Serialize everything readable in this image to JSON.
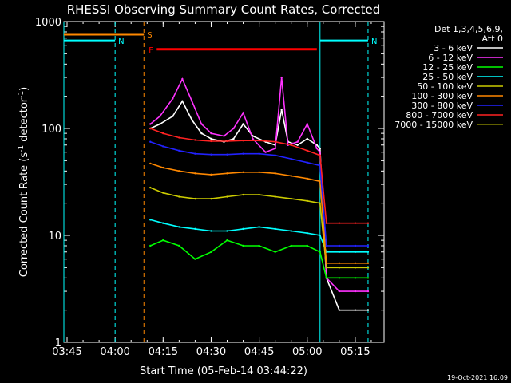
{
  "chart_data": {
    "type": "line",
    "title": "RHESSI Observing Summary Count Rates, Corrected",
    "xlabel": "Start Time (05-Feb-14 03:44:22)",
    "ylabel_main": "Corrected Count Rate (s",
    "ylabel_sup1": "-1",
    "ylabel_mid": " detector",
    "ylabel_sup2": "-1",
    "ylabel_end": ")",
    "yscale": "log",
    "xlim": [
      "03:44",
      "05:24"
    ],
    "ylim": [
      1,
      1000
    ],
    "x_ticks": [
      "03:45",
      "04:00",
      "04:15",
      "04:30",
      "04:45",
      "05:00",
      "05:15"
    ],
    "y_ticks": [
      "1",
      "10",
      "100",
      "1000"
    ],
    "legend_header": [
      "Det 1,3,4,5,6,9,",
      "Att 0"
    ],
    "series": [
      {
        "name": "3 - 6 keV",
        "color": "#ffffff",
        "x": [
          "04:11",
          "04:14",
          "04:18",
          "04:21",
          "04:24",
          "04:27",
          "04:30",
          "04:34",
          "04:37",
          "04:40",
          "04:43",
          "04:47",
          "04:50",
          "04:52",
          "04:54",
          "04:57",
          "05:00",
          "05:03",
          "05:04",
          "05:06",
          "05:10",
          "05:15",
          "05:19"
        ],
        "y": [
          100,
          110,
          130,
          180,
          120,
          90,
          80,
          75,
          80,
          110,
          85,
          75,
          70,
          150,
          75,
          70,
          80,
          70,
          65,
          4,
          2,
          2,
          2
        ]
      },
      {
        "name": "6 - 12 keV",
        "color": "#ff33ff",
        "x": [
          "04:11",
          "04:14",
          "04:18",
          "04:21",
          "04:24",
          "04:27",
          "04:30",
          "04:34",
          "04:37",
          "04:40",
          "04:43",
          "04:47",
          "04:50",
          "04:52",
          "04:54",
          "04:57",
          "05:00",
          "05:03",
          "05:04",
          "05:06",
          "05:10",
          "05:15",
          "05:19"
        ],
        "y": [
          110,
          130,
          190,
          290,
          180,
          110,
          90,
          85,
          100,
          140,
          80,
          60,
          65,
          300,
          70,
          75,
          110,
          65,
          60,
          4,
          3,
          3,
          3
        ]
      },
      {
        "name": "12 - 25 keV",
        "color": "#00ff00",
        "x": [
          "04:11",
          "04:15",
          "04:20",
          "04:25",
          "04:30",
          "04:35",
          "04:40",
          "04:45",
          "04:50",
          "04:55",
          "05:00",
          "05:04",
          "05:06",
          "05:10",
          "05:15",
          "05:19"
        ],
        "y": [
          8,
          9,
          8,
          6,
          7,
          9,
          8,
          8,
          7,
          8,
          8,
          7,
          4,
          4,
          4,
          4
        ]
      },
      {
        "name": "25 - 50 keV",
        "color": "#00ffff",
        "x": [
          "04:11",
          "04:15",
          "04:20",
          "04:25",
          "04:30",
          "04:35",
          "04:40",
          "04:45",
          "04:50",
          "04:55",
          "05:00",
          "05:04",
          "05:06",
          "05:10",
          "05:15",
          "05:19"
        ],
        "y": [
          14,
          13,
          12,
          11.5,
          11,
          11,
          11.5,
          12,
          11.5,
          11,
          10.5,
          10,
          7,
          7,
          7,
          7
        ]
      },
      {
        "name": "50 - 100 keV",
        "color": "#cccc00",
        "x": [
          "04:11",
          "04:15",
          "04:20",
          "04:25",
          "04:30",
          "04:35",
          "04:40",
          "04:45",
          "04:50",
          "04:55",
          "05:00",
          "05:04",
          "05:06",
          "05:10",
          "05:15",
          "05:19"
        ],
        "y": [
          28,
          25,
          23,
          22,
          22,
          23,
          24,
          24,
          23,
          22,
          21,
          20,
          5,
          5,
          5,
          5
        ]
      },
      {
        "name": "100 - 300 keV",
        "color": "#ff8800",
        "x": [
          "04:11",
          "04:15",
          "04:20",
          "04:25",
          "04:30",
          "04:35",
          "04:40",
          "04:45",
          "04:50",
          "04:55",
          "05:00",
          "05:04",
          "05:06",
          "05:10",
          "05:15",
          "05:19"
        ],
        "y": [
          47,
          43,
          40,
          38,
          37,
          38,
          39,
          39,
          38,
          36,
          34,
          32,
          5.5,
          5.5,
          5.5,
          5.5
        ]
      },
      {
        "name": "300 - 800 keV",
        "color": "#2222ff",
        "x": [
          "04:11",
          "04:15",
          "04:20",
          "04:25",
          "04:30",
          "04:35",
          "04:40",
          "04:45",
          "04:50",
          "04:55",
          "05:00",
          "05:04",
          "05:06",
          "05:10",
          "05:15",
          "05:19"
        ],
        "y": [
          75,
          68,
          62,
          58,
          57,
          57,
          58,
          58,
          56,
          52,
          48,
          45,
          8,
          8,
          8,
          8
        ]
      },
      {
        "name": "800 - 7000 keV",
        "color": "#ff2222",
        "x": [
          "04:11",
          "04:15",
          "04:20",
          "04:25",
          "04:30",
          "04:35",
          "04:40",
          "04:45",
          "04:50",
          "04:55",
          "05:00",
          "05:04",
          "05:06",
          "05:10",
          "05:15",
          "05:19"
        ],
        "y": [
          100,
          90,
          82,
          78,
          76,
          76,
          77,
          77,
          75,
          70,
          62,
          56,
          13,
          13,
          13,
          13
        ]
      },
      {
        "name": "7000 - 15000 keV",
        "color": "#808000",
        "x": [],
        "y": []
      }
    ],
    "flag_bars": [
      {
        "label": "S",
        "color": "#ff8800",
        "x": [
          "03:44",
          "04:09"
        ],
        "y": 760
      },
      {
        "label": "N",
        "color": "#00ffff",
        "x": [
          "03:44",
          "04:00"
        ],
        "y": 660
      },
      {
        "label": "N",
        "color": "#00ffff",
        "x": [
          "05:04",
          "05:19"
        ],
        "y": 660
      },
      {
        "label": "F",
        "color": "#ff0000",
        "x": [
          "04:13",
          "05:03"
        ],
        "y": 550
      }
    ],
    "vertical_markers": [
      {
        "x": "03:44",
        "color": "#00ffff",
        "style": "solid"
      },
      {
        "x": "04:00",
        "color": "#00ffff",
        "style": "dashed"
      },
      {
        "x": "04:09",
        "color": "#ff8800",
        "style": "dashed"
      },
      {
        "x": "05:04",
        "color": "#00ffff",
        "style": "solid"
      },
      {
        "x": "05:19",
        "color": "#00ffff",
        "style": "dashed"
      }
    ],
    "timestamp": "19-Oct-2021 16:09"
  }
}
